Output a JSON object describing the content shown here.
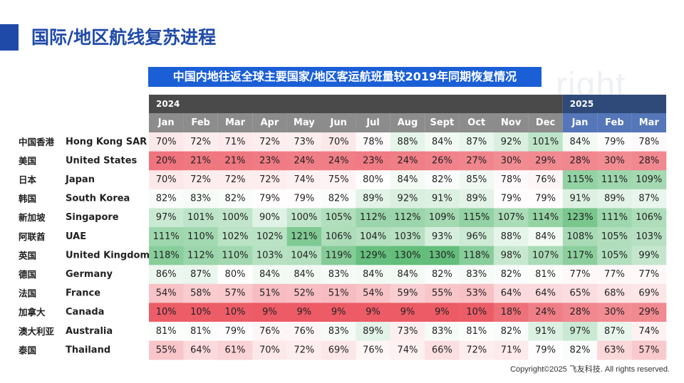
{
  "page": {
    "title": "国际/地区航线复苏进程",
    "copyright": "Copyright©2025 飞友科技. All rights reserved.",
    "watermark": "right"
  },
  "colors": {
    "title_blue": "#1f4aa8",
    "chart_title_bg": "#1a5fd6",
    "header_2024": "#4a4a4a",
    "header_2025": "#2f4a78",
    "month_2024": "#8c8c8c",
    "month_2025": "#5576b8",
    "low": "#ec5b66",
    "mid": "#ffffff",
    "high": "#63be7b"
  },
  "chart_data": {
    "type": "heatmap",
    "title": "中国内地往返全球主要国家/地区客运航班量较2019年同期恢复情况",
    "years": [
      {
        "label": "2024",
        "span": 12
      },
      {
        "label": "2025",
        "span": 3
      }
    ],
    "months": [
      "Jan",
      "Feb",
      "Mar",
      "Apr",
      "May",
      "Jun",
      "Jul",
      "Aug",
      "Sept",
      "Oct",
      "Nov",
      "Dec",
      "Jan",
      "Feb",
      "Mar"
    ],
    "rows": [
      {
        "cn": "中国香港",
        "en": "Hong Kong SAR",
        "values": [
          70,
          72,
          71,
          72,
          73,
          70,
          78,
          88,
          84,
          87,
          92,
          101,
          84,
          79,
          78
        ]
      },
      {
        "cn": "美国",
        "en": "United States",
        "values": [
          20,
          21,
          21,
          23,
          24,
          24,
          23,
          24,
          26,
          27,
          30,
          29,
          28,
          30,
          28
        ]
      },
      {
        "cn": "日本",
        "en": "Japan",
        "values": [
          70,
          72,
          72,
          72,
          74,
          75,
          80,
          84,
          82,
          85,
          78,
          76,
          115,
          111,
          109
        ]
      },
      {
        "cn": "韩国",
        "en": "South Korea",
        "values": [
          82,
          83,
          82,
          79,
          79,
          82,
          89,
          92,
          91,
          89,
          79,
          79,
          91,
          89,
          87
        ]
      },
      {
        "cn": "新加坡",
        "en": "Singapore",
        "values": [
          97,
          101,
          100,
          90,
          100,
          105,
          112,
          112,
          109,
          115,
          107,
          114,
          123,
          111,
          106
        ]
      },
      {
        "cn": "阿联酋",
        "en": "UAE",
        "values": [
          111,
          110,
          102,
          102,
          121,
          106,
          104,
          103,
          93,
          96,
          88,
          84,
          108,
          105,
          103
        ]
      },
      {
        "cn": "英国",
        "en": "United Kingdom",
        "values": [
          118,
          112,
          110,
          103,
          104,
          119,
          129,
          130,
          130,
          118,
          98,
          107,
          117,
          105,
          99
        ]
      },
      {
        "cn": "德国",
        "en": "Germany",
        "values": [
          86,
          87,
          80,
          84,
          84,
          83,
          84,
          84,
          82,
          83,
          82,
          81,
          77,
          77,
          77
        ]
      },
      {
        "cn": "法国",
        "en": "France",
        "values": [
          54,
          58,
          57,
          51,
          52,
          51,
          54,
          59,
          55,
          53,
          64,
          64,
          65,
          68,
          69
        ]
      },
      {
        "cn": "加拿大",
        "en": "Canada",
        "values": [
          10,
          10,
          10,
          9,
          9,
          9,
          9,
          9,
          9,
          10,
          18,
          24,
          28,
          30,
          29
        ]
      },
      {
        "cn": "澳大利亚",
        "en": "Australia",
        "values": [
          81,
          81,
          79,
          76,
          76,
          83,
          89,
          73,
          83,
          81,
          82,
          91,
          97,
          87,
          74
        ]
      },
      {
        "cn": "泰国",
        "en": "Thailand",
        "values": [
          55,
          64,
          61,
          70,
          72,
          69,
          76,
          74,
          66,
          72,
          71,
          79,
          82,
          63,
          57
        ]
      }
    ],
    "value_unit": "%"
  }
}
